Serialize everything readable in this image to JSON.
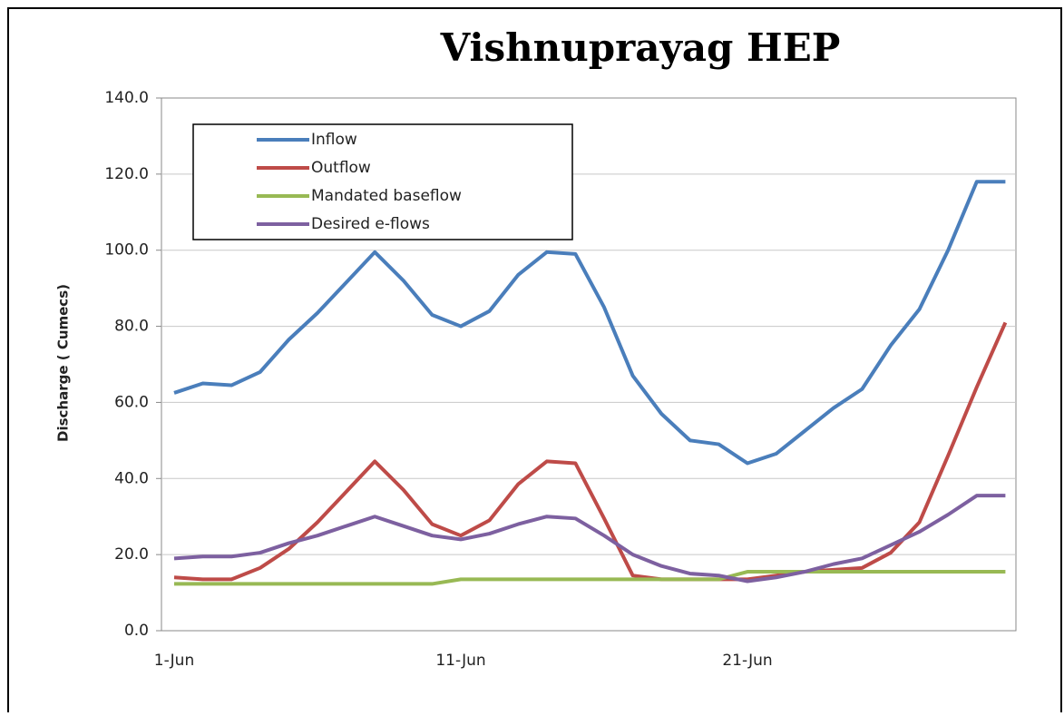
{
  "chart_data": {
    "type": "line",
    "title": "Vishnuprayag HEP",
    "y_label": "Discharge ( Cumecs)",
    "categories": [
      "1-Jun",
      null,
      null,
      null,
      null,
      null,
      null,
      null,
      null,
      null,
      "11-Jun",
      null,
      null,
      null,
      null,
      null,
      null,
      null,
      null,
      null,
      "21-Jun",
      null,
      null,
      null,
      null,
      null,
      null,
      null,
      null,
      null
    ],
    "series": [
      {
        "name": "Inflow",
        "color": "#4a7ebb",
        "values": [
          62.5,
          65,
          64.5,
          68,
          76.5,
          83.5,
          91.5,
          99.5,
          92,
          83,
          80,
          84,
          93.5,
          99.5,
          99,
          85,
          67,
          57,
          50,
          49,
          44,
          46.5,
          52.5,
          58.5,
          63.5,
          75,
          84.5,
          100,
          118,
          118
        ]
      },
      {
        "name": "Outflow",
        "color": "#be4b48",
        "values": [
          14,
          13.5,
          13.5,
          16.5,
          21.5,
          28.5,
          36.5,
          44.5,
          37,
          28,
          25,
          29,
          38.5,
          44.5,
          44,
          29.5,
          14.5,
          13.5,
          13.5,
          13.5,
          13.5,
          14.5,
          15.5,
          16,
          16.5,
          20.5,
          28.5,
          46,
          64,
          81
        ]
      },
      {
        "name": "Mandated baseflow",
        "color": "#98b954",
        "values": [
          12.3,
          12.3,
          12.3,
          12.3,
          12.3,
          12.3,
          12.3,
          12.3,
          12.3,
          12.3,
          13.5,
          13.5,
          13.5,
          13.5,
          13.5,
          13.5,
          13.5,
          13.5,
          13.5,
          13.5,
          15.5,
          15.5,
          15.5,
          15.5,
          15.5,
          15.5,
          15.5,
          15.5,
          15.5,
          15.5
        ]
      },
      {
        "name": "Desired e-flows",
        "color": "#7d60a0",
        "values": [
          19,
          19.5,
          19.5,
          20.5,
          23,
          25,
          27.5,
          30,
          27.5,
          25,
          24,
          25.5,
          28,
          30,
          29.5,
          25,
          20,
          17,
          15,
          14.5,
          13,
          14,
          15.5,
          17.5,
          19,
          22.5,
          26,
          30.5,
          35.5,
          35.5
        ]
      }
    ],
    "ylim": [
      0,
      140
    ],
    "yticks": [
      {
        "value": 0,
        "label": "0.0"
      },
      {
        "value": 20,
        "label": "20.0"
      },
      {
        "value": 40,
        "label": "40.0"
      },
      {
        "value": 60,
        "label": "60.0"
      },
      {
        "value": 80,
        "label": "80.0"
      },
      {
        "value": 100,
        "label": "100.0"
      },
      {
        "value": 120,
        "label": "120.0"
      },
      {
        "value": 140,
        "label": "140.0"
      }
    ],
    "grid": true,
    "legend": "upper left"
  }
}
